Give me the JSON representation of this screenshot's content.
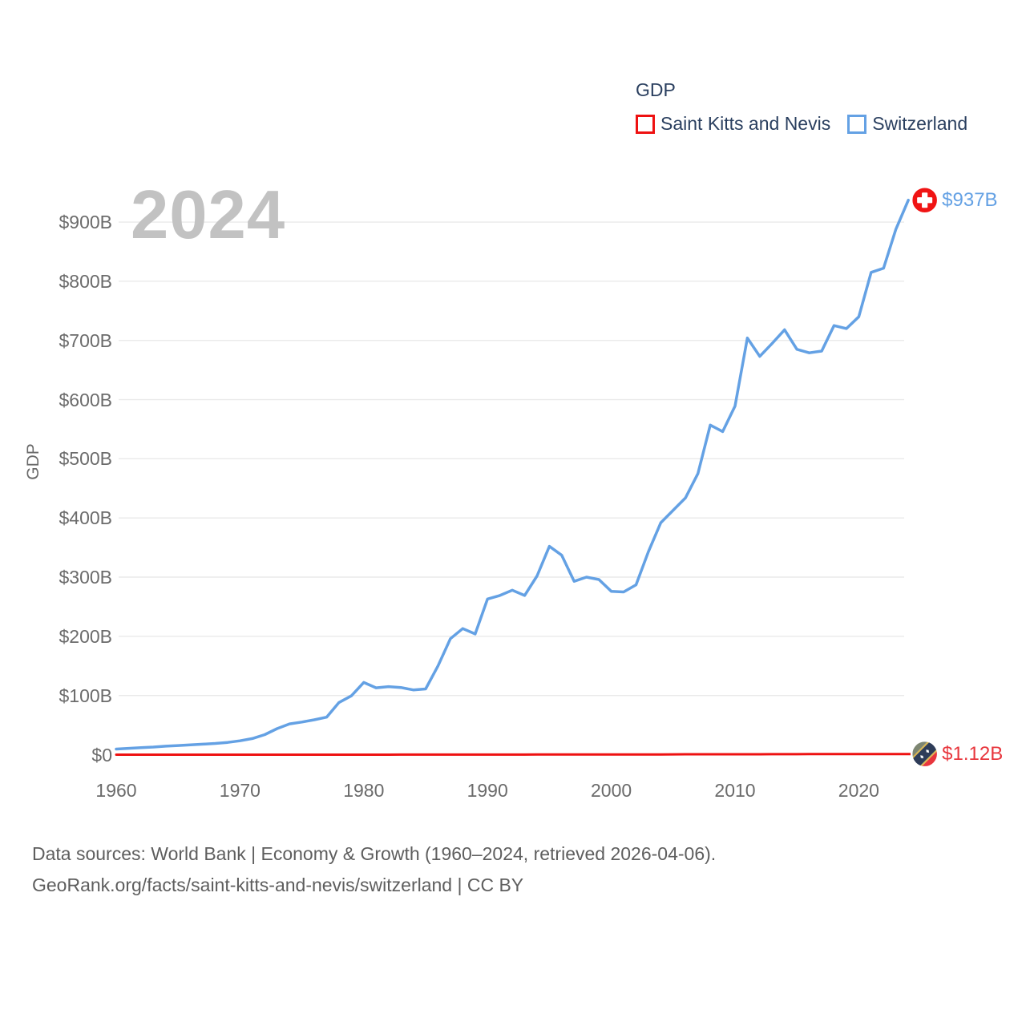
{
  "legend": {
    "title": "GDP",
    "items": [
      {
        "label": "Saint Kitts and Nevis",
        "color": "#ee1111"
      },
      {
        "label": "Switzerland",
        "color": "#64a1e4"
      }
    ]
  },
  "watermark": "2024",
  "axes": {
    "y_title": "GDP",
    "y_ticks": [
      {
        "label": "$0",
        "value": 0
      },
      {
        "label": "$100B",
        "value": 100
      },
      {
        "label": "$200B",
        "value": 200
      },
      {
        "label": "$300B",
        "value": 300
      },
      {
        "label": "$400B",
        "value": 400
      },
      {
        "label": "$500B",
        "value": 500
      },
      {
        "label": "$600B",
        "value": 600
      },
      {
        "label": "$700B",
        "value": 700
      },
      {
        "label": "$800B",
        "value": 800
      },
      {
        "label": "$900B",
        "value": 900
      }
    ],
    "x_ticks": [
      {
        "label": "1960",
        "value": 1960
      },
      {
        "label": "1970",
        "value": 1970
      },
      {
        "label": "1980",
        "value": 1980
      },
      {
        "label": "1990",
        "value": 1990
      },
      {
        "label": "2000",
        "value": 2000
      },
      {
        "label": "2010",
        "value": 2010
      },
      {
        "label": "2020",
        "value": 2020
      }
    ]
  },
  "end_labels": {
    "switzerland": {
      "label": "$937B"
    },
    "saint_kitts": {
      "label": "$1.12B"
    }
  },
  "footer": {
    "line1": "Data sources: World Bank | Economy & Growth (1960–2024, retrieved 2026-04-06).",
    "line2": "GeoRank.org/facts/saint-kitts-and-nevis/switzerland | CC BY"
  },
  "chart_data": {
    "type": "line",
    "title": "GDP",
    "ylabel": "GDP",
    "xlabel": "",
    "ylim_billions": [
      0,
      960
    ],
    "xlim_years": [
      1960,
      2024
    ],
    "grid": "horizontal",
    "legend_position": "top-right",
    "x": [
      1960,
      1961,
      1962,
      1963,
      1964,
      1965,
      1966,
      1967,
      1968,
      1969,
      1970,
      1971,
      1972,
      1973,
      1974,
      1975,
      1976,
      1977,
      1978,
      1979,
      1980,
      1981,
      1982,
      1983,
      1984,
      1985,
      1986,
      1987,
      1988,
      1989,
      1990,
      1991,
      1992,
      1993,
      1994,
      1995,
      1996,
      1997,
      1998,
      1999,
      2000,
      2001,
      2002,
      2003,
      2004,
      2005,
      2006,
      2007,
      2008,
      2009,
      2010,
      2011,
      2012,
      2013,
      2014,
      2015,
      2016,
      2017,
      2018,
      2019,
      2020,
      2021,
      2022,
      2023,
      2024
    ],
    "series": [
      {
        "name": "Saint Kitts and Nevis",
        "color": "#ee1111",
        "unit": "billion USD",
        "final_label": "$1.12B",
        "values": [
          0.012,
          0.013,
          0.013,
          0.014,
          0.015,
          0.016,
          0.017,
          0.018,
          0.019,
          0.021,
          0.023,
          0.025,
          0.028,
          0.031,
          0.035,
          0.038,
          0.04,
          0.043,
          0.047,
          0.051,
          0.054,
          0.059,
          0.065,
          0.07,
          0.079,
          0.103,
          0.116,
          0.13,
          0.145,
          0.153,
          0.159,
          0.17,
          0.188,
          0.202,
          0.218,
          0.239,
          0.255,
          0.277,
          0.29,
          0.313,
          0.329,
          0.345,
          0.357,
          0.38,
          0.425,
          0.557,
          0.626,
          0.678,
          0.724,
          0.685,
          0.69,
          0.716,
          0.734,
          0.766,
          0.812,
          0.869,
          0.904,
          0.932,
          0.981,
          1.013,
          0.927,
          0.966,
          1.03,
          1.08,
          1.12
        ]
      },
      {
        "name": "Switzerland",
        "color": "#64a1e4",
        "unit": "billion USD",
        "final_label": "$937B",
        "values": [
          9.5,
          10.7,
          11.9,
          12.9,
          14.3,
          15.5,
          16.5,
          17.7,
          18.9,
          20.7,
          23.4,
          27.2,
          33.9,
          44.0,
          52.0,
          55.1,
          58.9,
          63.4,
          88.2,
          99.4,
          122.0,
          113.0,
          115.0,
          113.5,
          109.5,
          111.0,
          150.0,
          196.0,
          213.0,
          204.0,
          263.0,
          269.0,
          278.0,
          269.0,
          302.0,
          352.0,
          337.0,
          293.0,
          300.0,
          296.0,
          276.0,
          275.0,
          287.0,
          343.0,
          392.0,
          413.0,
          434.0,
          475.0,
          557.0,
          546.0,
          589.0,
          704.0,
          673.0,
          695.0,
          718.0,
          685.0,
          679.0,
          682.0,
          725.0,
          720.0,
          740.0,
          815.0,
          822.0,
          888.0,
          937.0
        ]
      }
    ]
  }
}
